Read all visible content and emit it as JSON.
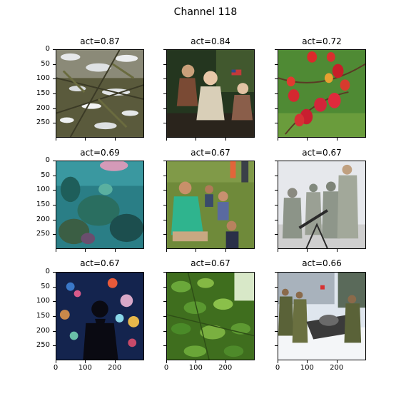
{
  "figure": {
    "title": "Channel 118"
  },
  "panels": [
    {
      "title": "act=0.87",
      "subject": "snow-covered evergreen branches"
    },
    {
      "title": "act=0.84",
      "subject": "porcelain dolls on a green backdrop"
    },
    {
      "title": "act=0.72",
      "subject": "red rose hips on branches"
    },
    {
      "title": "act=0.69",
      "subject": "underwater coral reef"
    },
    {
      "title": "act=0.67",
      "subject": "woman with children sitting on grass"
    },
    {
      "title": "act=0.67",
      "subject": "soldiers in camouflage with weapon"
    },
    {
      "title": "act=0.67",
      "subject": "silhouette in front of aquarium"
    },
    {
      "title": "act=0.67",
      "subject": "green tree leaves"
    },
    {
      "title": "act=0.66",
      "subject": "soldiers with snowmobile in snow"
    }
  ],
  "y_ticks": [
    "0",
    "50",
    "100",
    "150",
    "200",
    "250"
  ],
  "x_ticks": [
    "0",
    "100",
    "200"
  ]
}
